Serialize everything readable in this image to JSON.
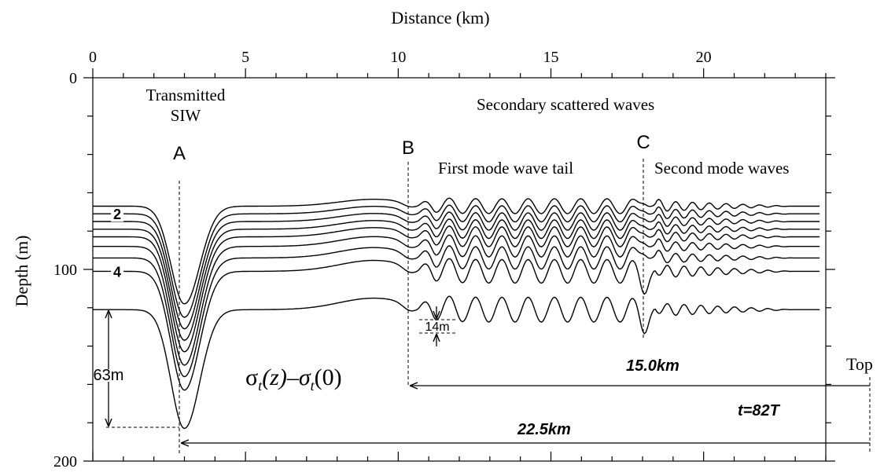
{
  "chart_data": {
    "type": "line",
    "xlabel": "Distance (km)",
    "ylabel": "Depth (m)",
    "xlim": [
      0,
      24
    ],
    "ylim": [
      0,
      200
    ],
    "y_inverted": true,
    "x_major_ticks": [
      0,
      5,
      10,
      15,
      20
    ],
    "x_minor_step": 1,
    "y_major_ticks": [
      0,
      100,
      200
    ],
    "y_minor_step": 20,
    "grid": false,
    "isopycnal_count": 8,
    "baseline_depths": [
      67,
      71,
      75,
      79,
      83,
      88,
      94,
      101
    ],
    "bottom_isopycnal_depth": 121,
    "trough": {
      "x": 3,
      "depths": [
        118,
        125,
        131,
        137,
        143,
        150,
        156,
        163,
        183
      ]
    },
    "curve_labels": [
      {
        "label": "2",
        "curve": 2
      },
      {
        "label": "4",
        "curve": 8
      }
    ],
    "annotations": {
      "transmitted_line1": "Transmitted",
      "transmitted_line2": "SIW",
      "label_A": "A",
      "label_B": "B",
      "label_C": "C",
      "secondary": "Secondary scattered  waves",
      "first_mode": "First mode wave tail",
      "second_mode": "Second mode waves",
      "amp_63": "63m",
      "amp_14": "14m",
      "formula_base": "σ",
      "formula_sub": "t",
      "formula_mid": "(z)–σ",
      "formula_sub2": "t",
      "formula_end": "(0)",
      "dist_15": "15.0km",
      "dist_22": "22.5km",
      "time_label": "t=82T",
      "top_label": "Top"
    },
    "markers": {
      "A_x": 3,
      "B_x": 10.4,
      "C_x": 18.1
    }
  }
}
